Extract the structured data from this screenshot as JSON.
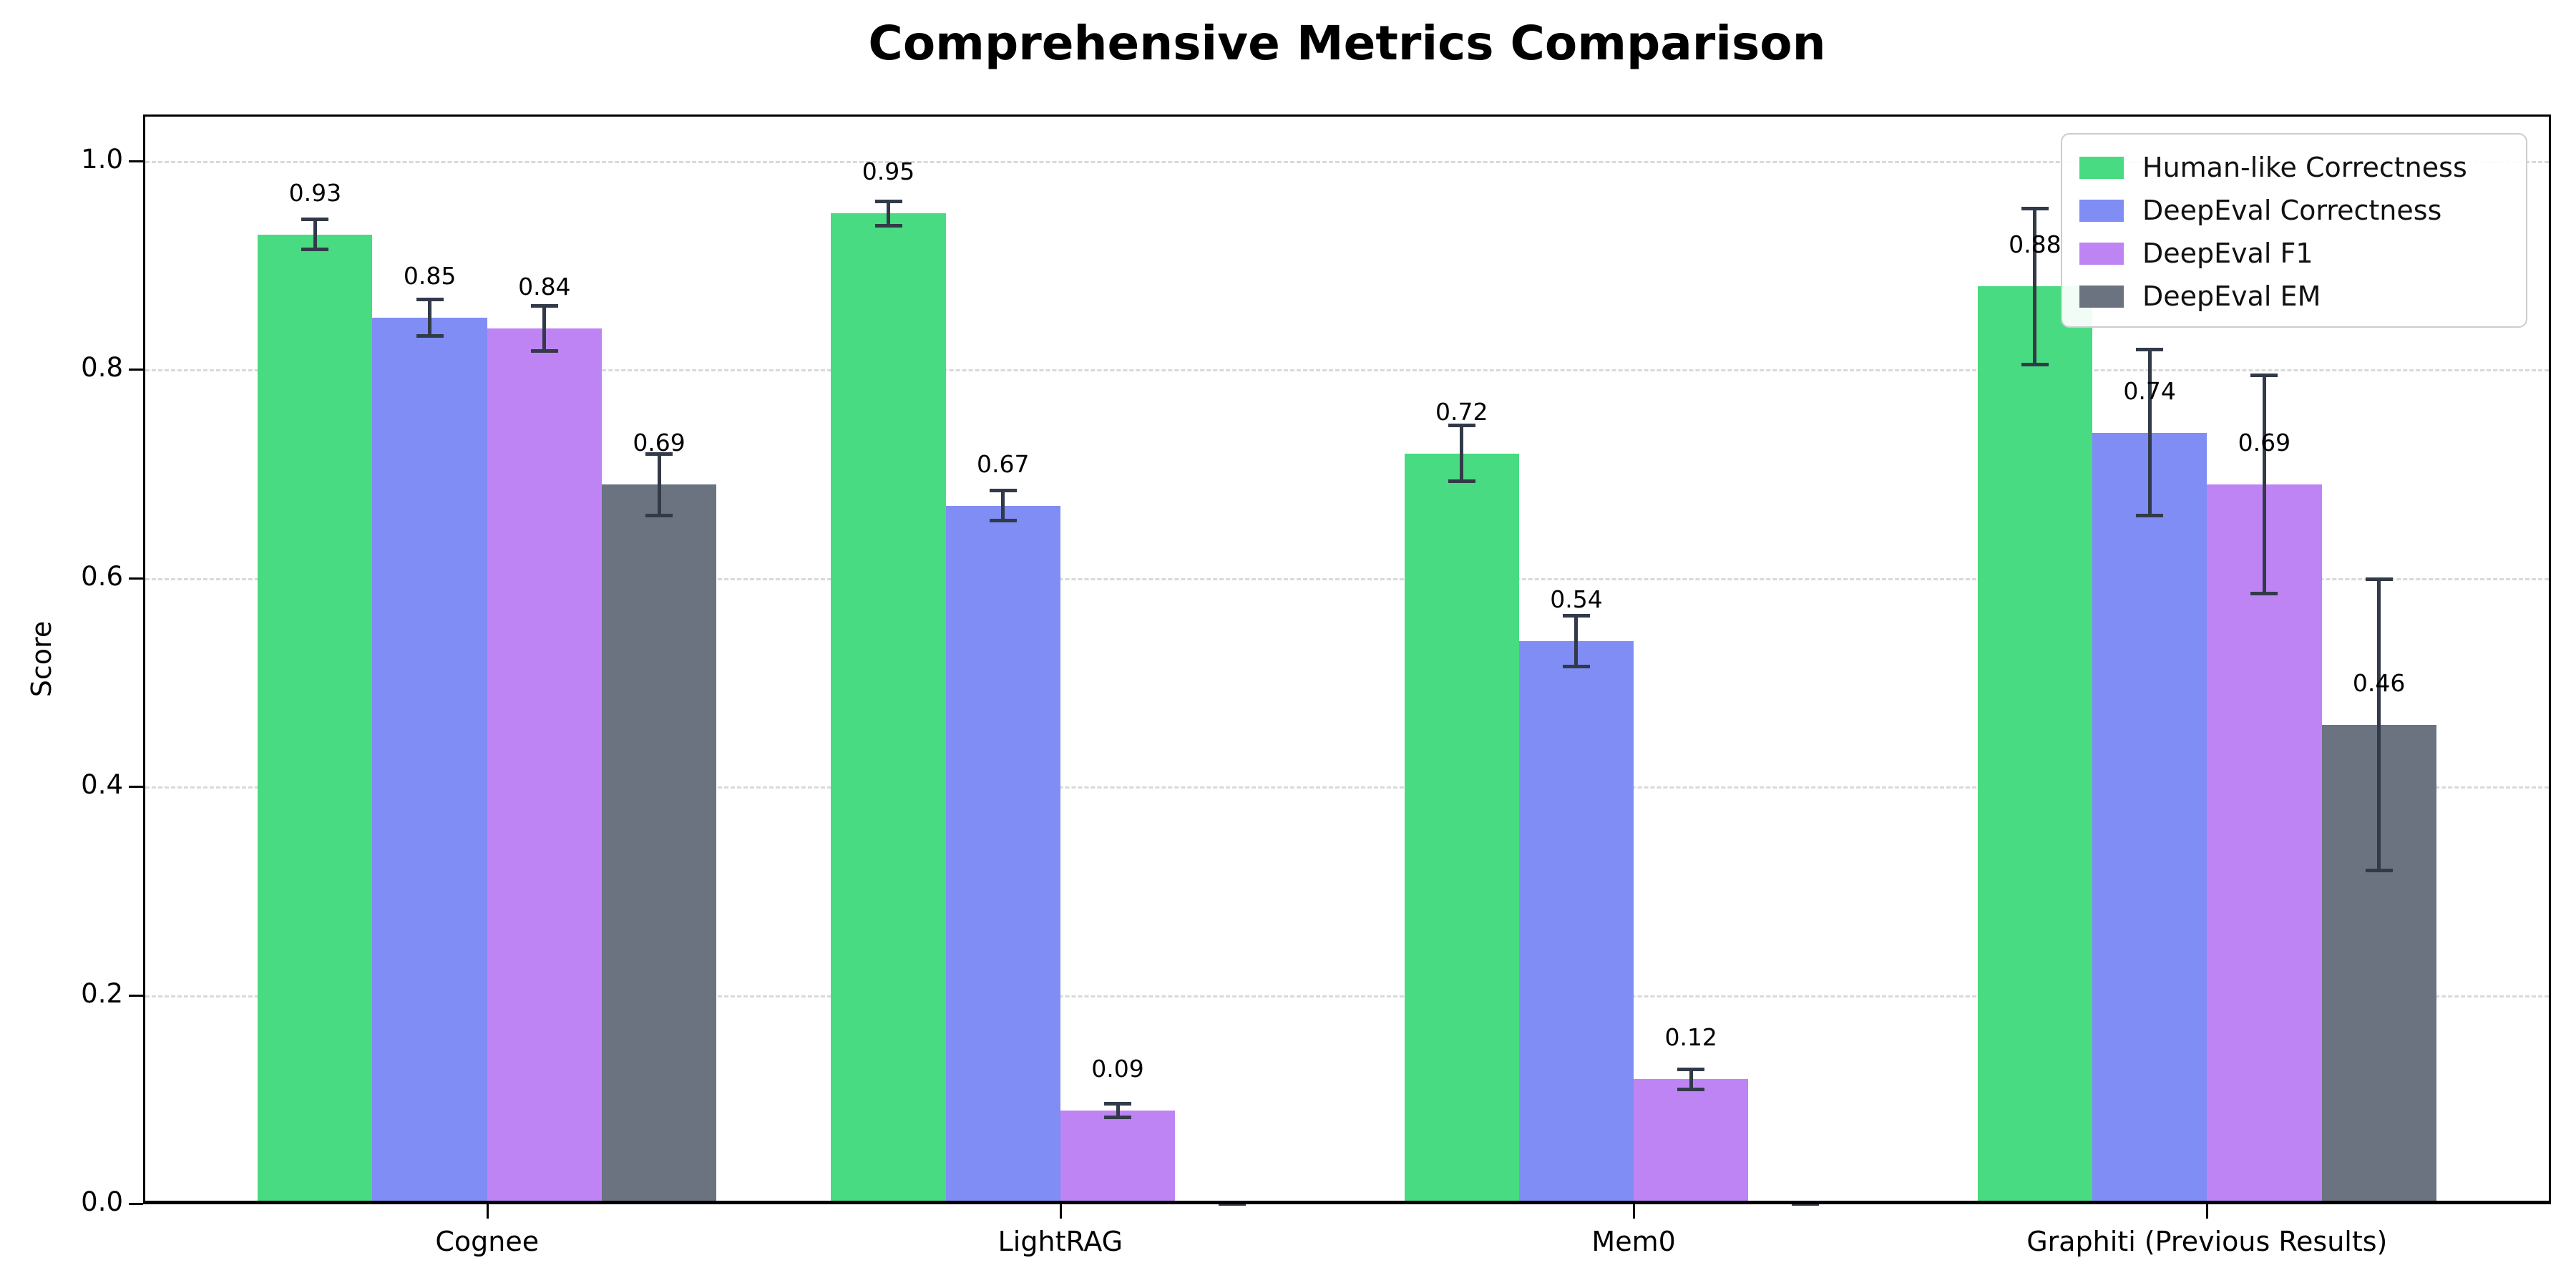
{
  "figure": {
    "title": "Comprehensive Metrics Comparison",
    "ylabel": "Score"
  },
  "chart_data": {
    "type": "bar",
    "title": "Comprehensive Metrics Comparison",
    "xlabel": "",
    "ylabel": "Score",
    "categories": [
      "Cognee",
      "LightRAG",
      "Mem0",
      "Graphiti (Previous Results)"
    ],
    "yticks": [
      "0.0",
      "0.2",
      "0.4",
      "0.6",
      "0.8",
      "1.0"
    ],
    "ylim": [
      0,
      1.045
    ],
    "grid": "horizontal-dashed",
    "legend_position": "upper-right",
    "error_color": "#323a49",
    "series": [
      {
        "name": "Human-like Correctness",
        "color": "#48db81",
        "values": [
          0.93,
          0.95,
          0.72,
          0.88
        ],
        "errors": [
          0.015,
          0.012,
          0.027,
          0.075
        ],
        "labels": [
          "0.93",
          "0.95",
          "0.72",
          "0.88"
        ]
      },
      {
        "name": "DeepEval Correctness",
        "color": "#7f8df4",
        "values": [
          0.85,
          0.67,
          0.54,
          0.74
        ],
        "errors": [
          0.018,
          0.015,
          0.025,
          0.08
        ],
        "labels": [
          "0.85",
          "0.67",
          "0.54",
          "0.74"
        ]
      },
      {
        "name": "DeepEval F1",
        "color": "#bf84f3",
        "values": [
          0.84,
          0.09,
          0.12,
          0.69
        ],
        "errors": [
          0.022,
          0.007,
          0.01,
          0.105
        ],
        "labels": [
          "0.84",
          "0.09",
          "0.12",
          "0.69"
        ]
      },
      {
        "name": "DeepEval EM",
        "color": "#6b7280",
        "values": [
          0.69,
          0.0,
          0.0,
          0.46
        ],
        "errors": [
          0.03,
          0.002,
          0.002,
          0.14
        ],
        "labels": [
          "0.69",
          "",
          "",
          "0.46"
        ]
      }
    ]
  }
}
